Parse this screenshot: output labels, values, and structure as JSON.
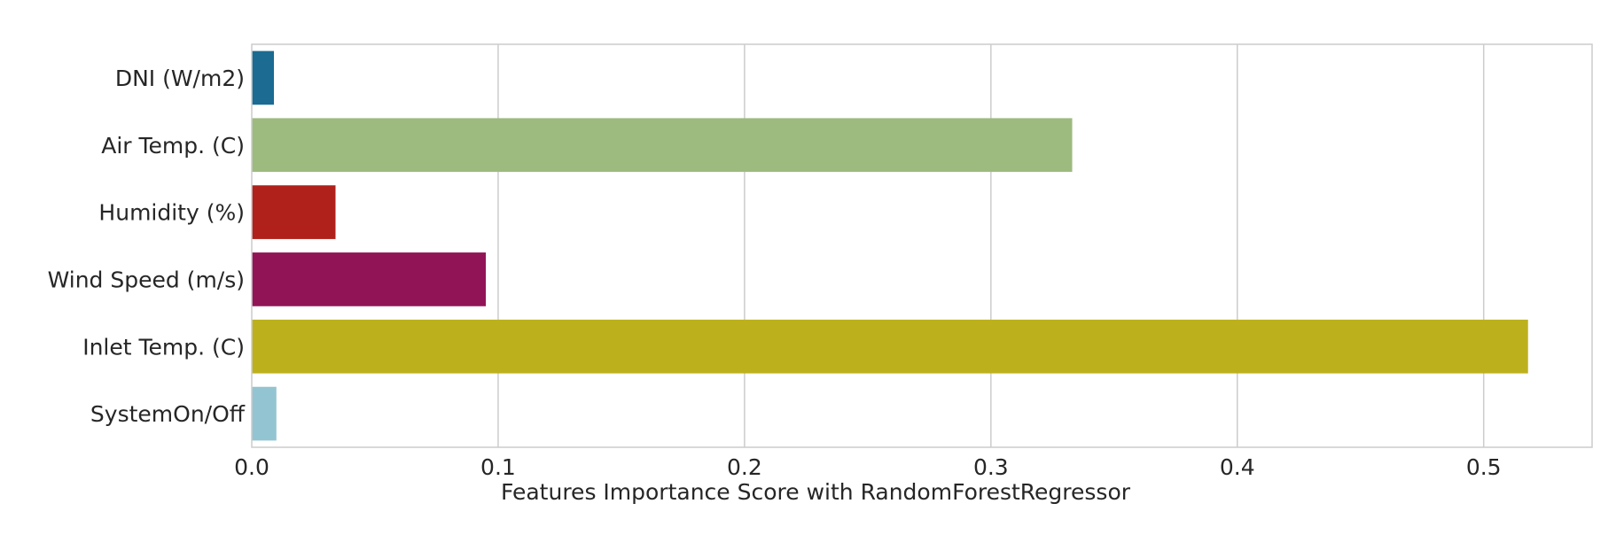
{
  "chart_data": {
    "type": "bar",
    "orientation": "horizontal",
    "title": "",
    "xlabel": "Features Importance Score with RandomForestRegressor",
    "ylabel": "",
    "xlim": [
      0,
      0.544
    ],
    "xticks": [
      0.0,
      0.1,
      0.2,
      0.3,
      0.4,
      0.5
    ],
    "xtick_labels": [
      "0.0",
      "0.1",
      "0.2",
      "0.3",
      "0.4",
      "0.5"
    ],
    "grid": "vertical",
    "categories": [
      "DNI (W/m2)",
      "Air Temp. (C)",
      "Humidity (%)",
      "Wind Speed (m/s)",
      "Inlet Temp. (C)",
      "SystemOn/Off"
    ],
    "values": [
      0.009,
      0.333,
      0.034,
      0.095,
      0.518,
      0.01
    ],
    "colors": [
      "#1b6b93",
      "#9dba7f",
      "#b0211b",
      "#911556",
      "#bdb01d",
      "#93c4d1"
    ]
  }
}
